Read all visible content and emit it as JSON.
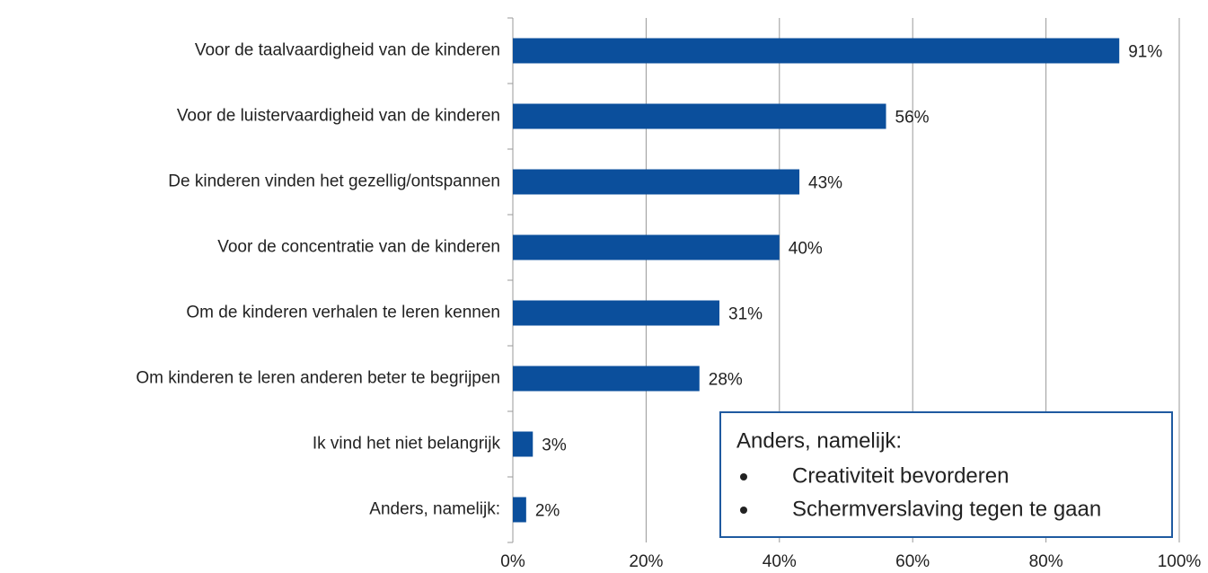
{
  "chart_data": {
    "type": "barh",
    "categories": [
      "Voor de taalvaardigheid van de kinderen",
      "Voor de luistervaardigheid van de kinderen",
      "De kinderen vinden het gezellig/ontspannen",
      "Voor de concentratie van de kinderen",
      "Om de kinderen verhalen te leren kennen",
      "Om kinderen te leren anderen beter te begrijpen",
      "Ik vind het niet belangrijk",
      "Anders, namelijk:"
    ],
    "values": [
      91,
      56,
      43,
      40,
      31,
      28,
      3,
      2
    ],
    "value_labels": [
      "91%",
      "56%",
      "43%",
      "40%",
      "31%",
      "28%",
      "3%",
      "2%"
    ],
    "color": "#0b4f9c",
    "xlim": [
      0,
      100
    ],
    "xticks": [
      {
        "value": 0,
        "label": "0%"
      },
      {
        "value": 20,
        "label": "20%"
      },
      {
        "value": 40,
        "label": "40%"
      },
      {
        "value": 60,
        "label": "60%"
      },
      {
        "value": 80,
        "label": "80%"
      },
      {
        "value": 100,
        "label": "100%"
      }
    ],
    "grid": true,
    "annotation": {
      "title": "Anders, namelijk:",
      "items": [
        "Creativiteit bevorderen",
        "Schermverslaving tegen te gaan"
      ]
    }
  }
}
